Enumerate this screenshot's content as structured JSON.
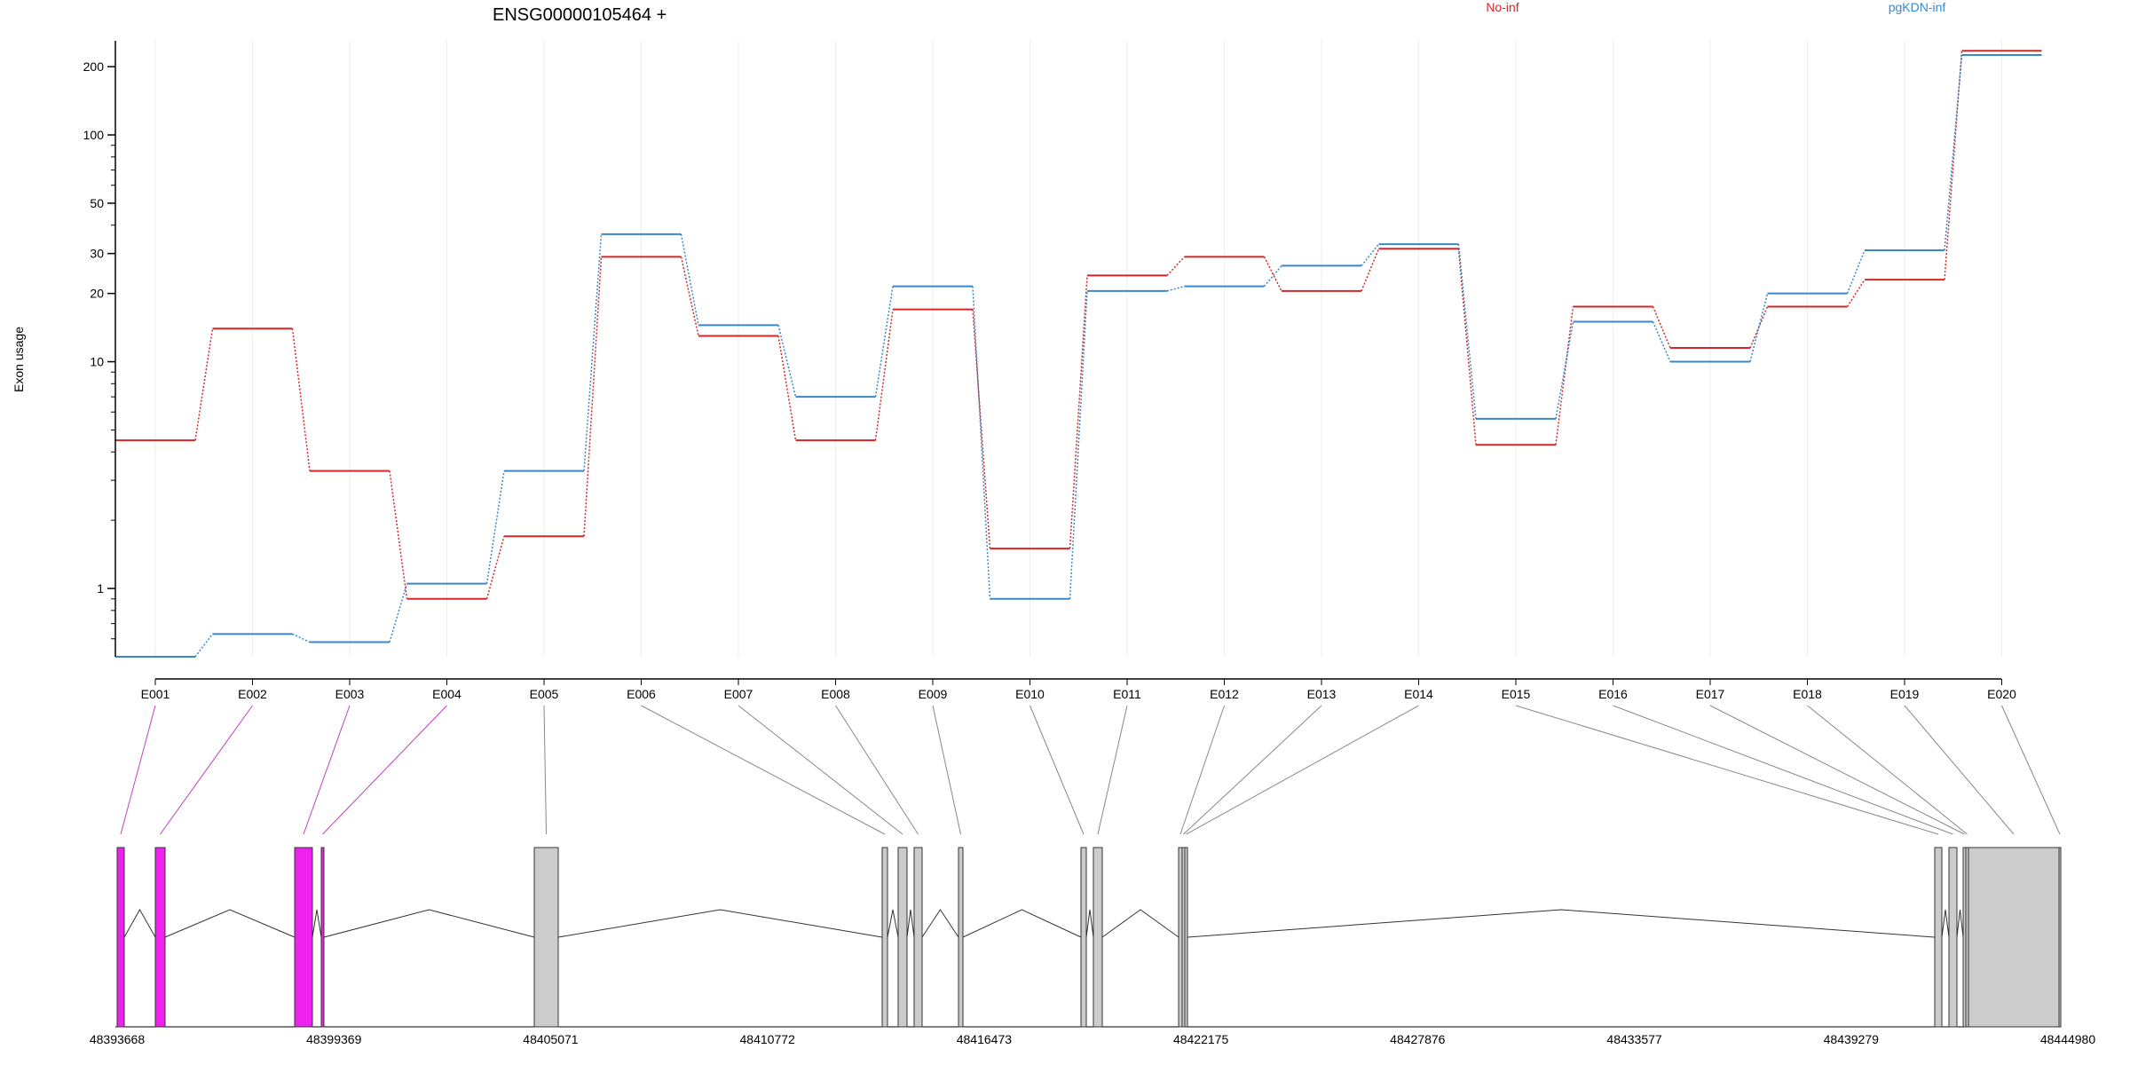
{
  "chart_data": {
    "type": "line",
    "title": "ENSG00000105464 +",
    "ylabel": "Exon usage",
    "yscale": "log",
    "ylim": [
      0.5,
      260
    ],
    "ytick_values": [
      1,
      10,
      20,
      30,
      50,
      100,
      200
    ],
    "ytick_labels": [
      "1",
      "10",
      "20",
      "30",
      "50",
      "100",
      "200"
    ],
    "grid": "vertical",
    "legend_placement": "top",
    "categories": [
      "E001",
      "E002",
      "E003",
      "E004",
      "E005",
      "E006",
      "E007",
      "E008",
      "E009",
      "E010",
      "E011",
      "E012",
      "E013",
      "E014",
      "E015",
      "E016",
      "E017",
      "E018",
      "E019",
      "E020"
    ],
    "series": [
      {
        "name": "No-inf",
        "color": "#d62728",
        "values": [
          4.5,
          14,
          3.3,
          0.9,
          1.7,
          29,
          13,
          4.5,
          17,
          1.5,
          24,
          29,
          20.5,
          31.5,
          4.3,
          17.5,
          11.5,
          17.5,
          23,
          235
        ]
      },
      {
        "name": "pgKDN-inf",
        "color": "#3a87c9",
        "values": [
          0.5,
          0.63,
          0.58,
          1.05,
          3.3,
          36.5,
          14.5,
          7,
          21.5,
          0.9,
          20.5,
          21.5,
          26.5,
          33,
          5.6,
          15,
          10,
          20,
          31,
          225
        ]
      }
    ],
    "gene_model": {
      "coord_ticks": [
        "48393668",
        "48399369",
        "48405071",
        "48410772",
        "48416473",
        "48422175",
        "48427876",
        "48433577",
        "48439279",
        "48444980"
      ],
      "highlight_color": "#ee22ee",
      "exon_color": "#cccccc",
      "exon_highlight": [
        true,
        true,
        true,
        true,
        false,
        false,
        false,
        false,
        false,
        false,
        false,
        false,
        false,
        false,
        false,
        false,
        false,
        false,
        false,
        false
      ]
    }
  }
}
